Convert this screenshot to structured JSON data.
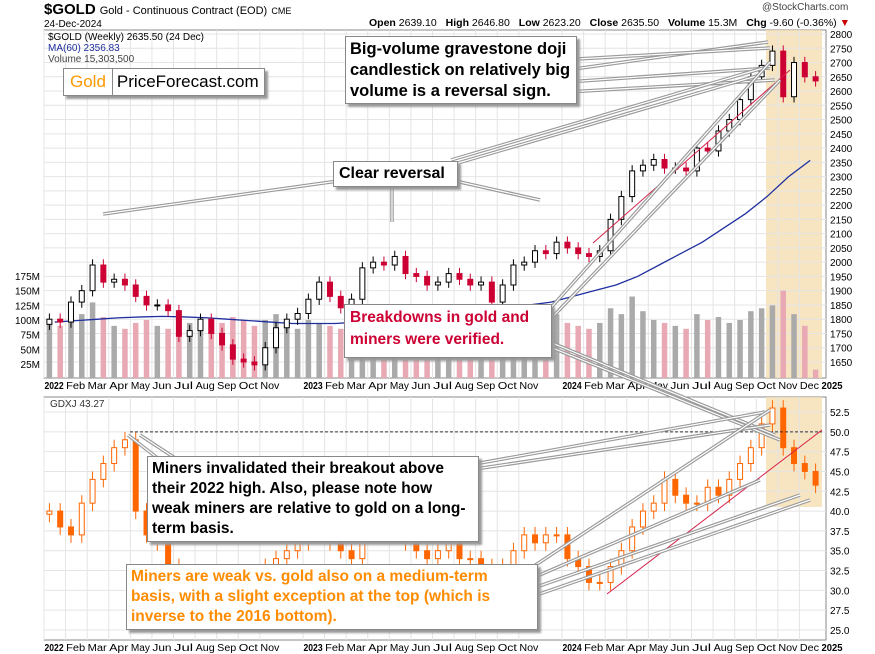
{
  "header": {
    "symbol": "$GOLD",
    "description": "Gold - Continuous Contract (EOD)",
    "exchange": "CME",
    "date": "24-Dec-2024",
    "open_label": "Open",
    "open": "2639.10",
    "high_label": "High",
    "high": "2646.80",
    "low_label": "Low",
    "low": "2623.20",
    "close_label": "Close",
    "close": "2635.50",
    "volume_label": "Volume",
    "volume": "15.3M",
    "chg_label": "Chg",
    "chg": "-9.60 (-0.36%)",
    "watermark": "@StockCharts.com"
  },
  "legend": {
    "price": "$GOLD (Weekly) 2635.50 (24 Dec)",
    "ma": "MA(60) 2356.83",
    "volume": "Volume 15,303,500",
    "gdxj": "GDXJ 43.27"
  },
  "logo": {
    "part1": "Gold",
    "part2": "PriceForecast.com"
  },
  "annotations": {
    "doji": "Big-volume gravestone doji candlestick on relatively big volume is a reversal sign.",
    "reversal": "Clear reversal",
    "breakdowns": "Breakdowns in gold and miners were verified.",
    "miners_invalidated": "Miners invalidated their breakout above their 2022 high. Also, please note how weak miners are relative to gold on a long-term basis.",
    "miners_weak": "Miners are weak vs. gold also on a medium-term basis, with a slight exception at the top (which is inverse to the 2016 bottom)."
  },
  "colors": {
    "up": "#000000",
    "down_gold": "#cc0033",
    "gdxj": "#ff6600",
    "ma": "#1f2f9f",
    "vol_up": "#aaaaaa",
    "vol_down": "#e8a8b4",
    "highlight": "#f5deb3",
    "trend": "#d6204a",
    "orange_text": "#ff8c00",
    "red_text": "#cc0033"
  },
  "chart_data": [
    {
      "type": "candlestick",
      "title": "$GOLD (Weekly)",
      "period": "2022-01 to 2024-12 (semi-monthly approximation)",
      "x_tick_labels": [
        "2022",
        "Feb",
        "Mar",
        "Apr",
        "May",
        "Jun",
        "Jul",
        "Aug",
        "Sep",
        "Oct",
        "Nov",
        "2023",
        "Feb",
        "Mar",
        "Apr",
        "May",
        "Jun",
        "Jul",
        "Aug",
        "Sep",
        "Oct",
        "Nov",
        "2024",
        "Feb",
        "Mar",
        "Apr",
        "May",
        "Jun",
        "Jul",
        "Aug",
        "Sep",
        "Oct",
        "Nov",
        "Dec",
        "2025"
      ],
      "y_ticks": [
        2800,
        2750,
        2700,
        2650,
        2600,
        2550,
        2500,
        2450,
        2400,
        2350,
        2300,
        2250,
        2200,
        2150,
        2100,
        2050,
        2000,
        1950,
        1900,
        1850,
        1800,
        1750,
        1700,
        1650
      ],
      "ylim": [
        1630,
        2820
      ],
      "close": [
        1800,
        1790,
        1860,
        1900,
        1990,
        1930,
        1940,
        1920,
        1880,
        1850,
        1850,
        1830,
        1740,
        1760,
        1800,
        1750,
        1710,
        1660,
        1650,
        1640,
        1700,
        1770,
        1800,
        1820,
        1870,
        1930,
        1880,
        1840,
        1870,
        1980,
        2000,
        1990,
        2020,
        1960,
        1950,
        1920,
        1930,
        1960,
        1940,
        1920,
        1930,
        1860,
        1920,
        1990,
        2000,
        2040,
        2030,
        2070,
        2050,
        2030,
        2020,
        2040,
        2150,
        2230,
        2320,
        2340,
        2360,
        2330,
        2330,
        2320,
        2400,
        2390,
        2460,
        2500,
        2570,
        2650,
        2690,
        2740,
        2580,
        2700,
        2650,
        2635.5
      ],
      "ma60_monthly": [
        1790,
        1795,
        1800,
        1805,
        1808,
        1810,
        1808,
        1805,
        1800,
        1795,
        1790,
        1785,
        1785,
        1785,
        1790,
        1800,
        1810,
        1820,
        1825,
        1830,
        1835,
        1840,
        1850,
        1860,
        1880,
        1900,
        1920,
        1950,
        1990,
        2030,
        2070,
        2120,
        2170,
        2230,
        2300,
        2356.83
      ],
      "volume_ticks": [
        "175M",
        "150M",
        "125M",
        "100M",
        "75M",
        "50M",
        "25M"
      ],
      "volume_millions": [
        95,
        90,
        100,
        110,
        130,
        105,
        90,
        85,
        95,
        100,
        90,
        85,
        110,
        95,
        90,
        85,
        95,
        105,
        100,
        90,
        100,
        110,
        95,
        85,
        100,
        95,
        90,
        85,
        105,
        110,
        100,
        90,
        95,
        85,
        80,
        75,
        85,
        90,
        80,
        75,
        85,
        90,
        95,
        100,
        95,
        90,
        85,
        110,
        95,
        90,
        85,
        95,
        120,
        110,
        140,
        115,
        100,
        95,
        90,
        85,
        110,
        100,
        105,
        95,
        100,
        115,
        120,
        125,
        150,
        110,
        90,
        15.3
      ]
    },
    {
      "type": "candlestick",
      "title": "GDXJ",
      "y_ticks": [
        "52.5",
        "50.0",
        "47.5",
        "45.0",
        "42.5",
        "40.0",
        "37.5",
        "35.0",
        "32.5",
        "30.0",
        "27.5",
        "25.0"
      ],
      "ylim": [
        24,
        54.5
      ],
      "reference_level": 50.0,
      "close": [
        40,
        38,
        37,
        41,
        44,
        46,
        48,
        49,
        40,
        37,
        36,
        33,
        31,
        32,
        31,
        30,
        28,
        29,
        29,
        30,
        33,
        34,
        35,
        36,
        38,
        39,
        36,
        35,
        34,
        37,
        39,
        40,
        37,
        36,
        35,
        34,
        35,
        36,
        34,
        34,
        33,
        32,
        33,
        35,
        37,
        36,
        37,
        37,
        34,
        33,
        31,
        31,
        33,
        35,
        38,
        40,
        41,
        44,
        42,
        41,
        41,
        43,
        42,
        44,
        46,
        48,
        51,
        53,
        48,
        46,
        45,
        43.27
      ]
    }
  ]
}
